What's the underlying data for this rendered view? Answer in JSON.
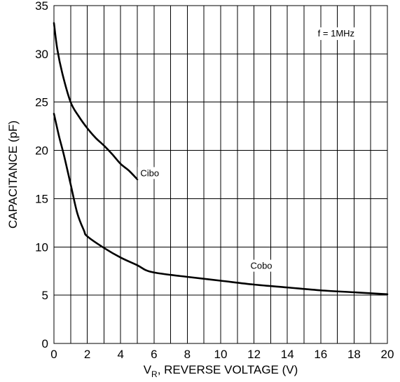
{
  "chart_data": {
    "type": "line",
    "title": "",
    "xlabel_main": "V",
    "xlabel_sub": "R",
    "xlabel_rest": ", REVERSE VOLTAGE (V)",
    "ylabel": "CAPACITANCE (pF)",
    "xlim": [
      0,
      20
    ],
    "ylim": [
      0,
      35
    ],
    "x_ticks": [
      0,
      2,
      4,
      6,
      8,
      10,
      12,
      14,
      16,
      18,
      20
    ],
    "y_ticks": [
      0,
      5,
      10,
      15,
      20,
      25,
      30,
      35
    ],
    "x_tick_labels": [
      "0",
      "2",
      "4",
      "6",
      "8",
      "10",
      "12",
      "14",
      "16",
      "18",
      "20"
    ],
    "y_tick_labels": [
      "0",
      "5",
      "10",
      "15",
      "20",
      "25",
      "30",
      "35"
    ],
    "grid": true,
    "annotation": "f = 1MHz",
    "series": [
      {
        "name": "Cibo",
        "x": [
          0,
          0.2,
          0.5,
          1.0,
          1.5,
          2.0,
          2.5,
          3.0,
          3.5,
          4.0,
          4.5,
          5.0
        ],
        "y": [
          33.2,
          30.5,
          28.0,
          25.0,
          23.5,
          22.3,
          21.3,
          20.5,
          19.6,
          18.6,
          17.9,
          17.0
        ]
      },
      {
        "name": "Cobo",
        "x": [
          0,
          0.3,
          0.6,
          1.0,
          1.4,
          1.8,
          2.0,
          3.0,
          4.0,
          5.0,
          5.5,
          6.0,
          7.0,
          8.0,
          10.0,
          12.0,
          14.0,
          16.0,
          18.0,
          20.0
        ],
        "y": [
          23.8,
          21.5,
          19.5,
          16.5,
          13.5,
          11.7,
          11.1,
          9.9,
          8.9,
          8.1,
          7.6,
          7.35,
          7.1,
          6.9,
          6.5,
          6.1,
          5.8,
          5.5,
          5.3,
          5.1
        ]
      }
    ],
    "series_labels": [
      {
        "text": "Cibo",
        "anchor_x": 5.1,
        "anchor_y": 17.4
      },
      {
        "text": "Cobo",
        "anchor_x": 11.7,
        "anchor_y": 7.8
      }
    ]
  }
}
